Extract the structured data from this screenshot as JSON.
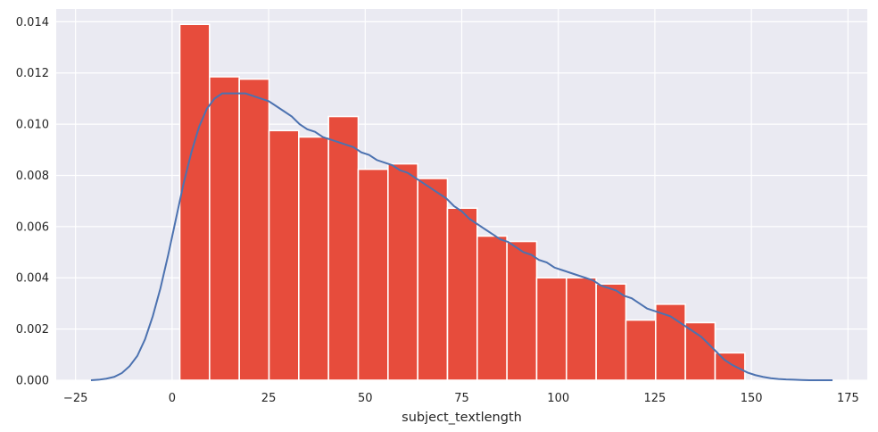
{
  "chart_data": {
    "type": "bar",
    "title": "",
    "xlabel": "subject_textlength",
    "ylabel": "",
    "xlim": [
      -30,
      180
    ],
    "ylim": [
      0,
      0.0145
    ],
    "x_ticks": [
      -25,
      0,
      25,
      50,
      75,
      100,
      125,
      150,
      175
    ],
    "y_ticks": [
      0.0,
      0.002,
      0.004,
      0.006,
      0.008,
      0.01,
      0.012,
      0.014
    ],
    "x_tick_labels": [
      "−25",
      "0",
      "25",
      "50",
      "75",
      "100",
      "125",
      "150",
      "175"
    ],
    "y_tick_labels": [
      "0.000",
      "0.002",
      "0.004",
      "0.006",
      "0.008",
      "0.010",
      "0.012",
      "0.014"
    ],
    "grid": true,
    "legend": "none",
    "bars": {
      "bin_edges": [
        2,
        9.7,
        17.4,
        25.1,
        32.8,
        40.5,
        48.2,
        55.9,
        63.6,
        71.3,
        79,
        86.7,
        94.4,
        102.1,
        109.8,
        117.5,
        125.2,
        132.9,
        140.6,
        148.3
      ],
      "values": [
        0.0139,
        0.01185,
        0.01176,
        0.00975,
        0.0095,
        0.0103,
        0.00824,
        0.00845,
        0.00788,
        0.00672,
        0.00563,
        0.00542,
        0.004,
        0.004,
        0.00376,
        0.00235,
        0.00297,
        0.00225,
        0.00107
      ],
      "color": "#e74c3c"
    },
    "kde": {
      "x": [
        -21,
        -19,
        -17,
        -15,
        -13,
        -11,
        -9,
        -7,
        -5,
        -3,
        -1,
        1,
        3,
        5,
        7,
        9,
        11,
        13,
        15,
        17,
        19,
        21,
        23,
        25,
        27,
        29,
        31,
        33,
        35,
        37,
        39,
        41,
        43,
        45,
        47,
        49,
        51,
        53,
        55,
        57,
        59,
        61,
        63,
        65,
        67,
        69,
        71,
        73,
        75,
        77,
        79,
        81,
        83,
        85,
        87,
        89,
        91,
        93,
        95,
        97,
        99,
        101,
        103,
        105,
        107,
        109,
        111,
        113,
        115,
        117,
        119,
        121,
        123,
        125,
        127,
        129,
        131,
        133,
        135,
        137,
        139,
        141,
        143,
        145,
        147,
        149,
        151,
        153,
        155,
        157,
        159,
        161,
        163,
        165,
        167,
        169,
        171
      ],
      "y": [
        0.0,
        2e-05,
        6e-05,
        0.00013,
        0.00028,
        0.00055,
        0.00095,
        0.0016,
        0.0025,
        0.0036,
        0.0049,
        0.0063,
        0.0077,
        0.0089,
        0.0099,
        0.0106,
        0.011,
        0.0112,
        0.0112,
        0.0112,
        0.0112,
        0.0111,
        0.011,
        0.0109,
        0.0107,
        0.0105,
        0.0103,
        0.01,
        0.0098,
        0.0097,
        0.0095,
        0.0094,
        0.0093,
        0.0092,
        0.0091,
        0.0089,
        0.0088,
        0.0086,
        0.0085,
        0.0084,
        0.0082,
        0.0081,
        0.0079,
        0.0077,
        0.0075,
        0.0073,
        0.0071,
        0.0068,
        0.0066,
        0.0063,
        0.0061,
        0.0059,
        0.0057,
        0.0055,
        0.0054,
        0.0052,
        0.005,
        0.0049,
        0.0047,
        0.0046,
        0.0044,
        0.0043,
        0.0042,
        0.0041,
        0.004,
        0.0039,
        0.0037,
        0.0036,
        0.0035,
        0.0033,
        0.0032,
        0.003,
        0.0028,
        0.0027,
        0.0026,
        0.0025,
        0.0023,
        0.0021,
        0.0019,
        0.0017,
        0.0014,
        0.0011,
        0.0008,
        0.0006,
        0.00045,
        0.0003,
        0.0002,
        0.00013,
        8e-05,
        5e-05,
        3e-05,
        2e-05,
        1e-05,
        0.0,
        0.0,
        0.0,
        0.0
      ],
      "color": "#4c72b0"
    },
    "background_color": "#eaeaf2",
    "grid_color": "#ffffff"
  }
}
